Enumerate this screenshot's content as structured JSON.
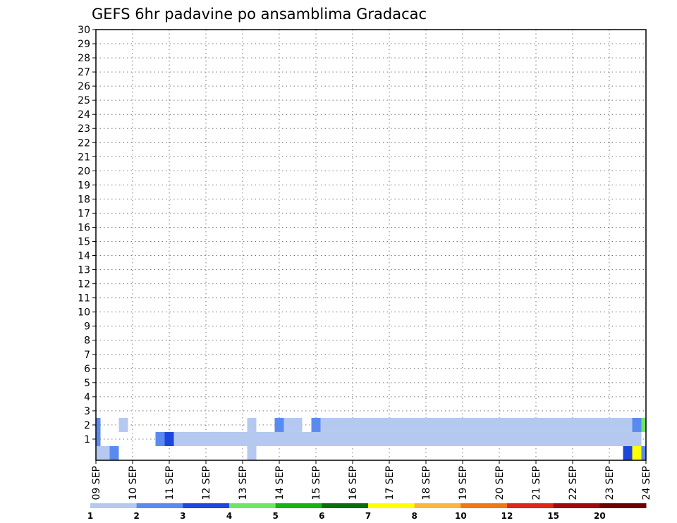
{
  "chart_data": {
    "type": "heatmap",
    "title": "GEFS 6hr padavine po ansamblima Gradacac",
    "xlabel": "",
    "ylabel": "",
    "x_tick_labels": [
      "09 SEP",
      "10 SEP",
      "11 SEP",
      "12 SEP",
      "13 SEP",
      "14 SEP",
      "15 SEP",
      "16 SEP",
      "17 SEP",
      "18 SEP",
      "19 SEP",
      "20 SEP",
      "21 SEP",
      "22 SEP",
      "23 SEP",
      "24 SEP"
    ],
    "x_range": [
      "09 SEP 00Z",
      "24 SEP 00Z"
    ],
    "time_step_hours": 6,
    "y_tick_labels": [
      "1",
      "2",
      "3",
      "4",
      "5",
      "6",
      "7",
      "8",
      "9",
      "10",
      "11",
      "12",
      "13",
      "14",
      "15",
      "16",
      "17",
      "18",
      "19",
      "20",
      "21",
      "22",
      "23",
      "24",
      "25",
      "26",
      "27",
      "28",
      "29",
      "30"
    ],
    "y_range": [
      0,
      30
    ],
    "grid": "dotted",
    "colorbar": {
      "position": "bottom",
      "levels": [
        1,
        2,
        3,
        4,
        5,
        6,
        7,
        8,
        10,
        12,
        15,
        20
      ],
      "labels": [
        "1",
        "2",
        "3",
        "4",
        "5",
        "6",
        "7",
        "8",
        "10",
        "12",
        "15",
        "20"
      ],
      "colors": [
        "#b4c8f0",
        "#5a8af0",
        "#1e46dc",
        "#6ee664",
        "#14b414",
        "#0a6e0a",
        "#ffff00",
        "#ffb43c",
        "#f07814",
        "#dc2814",
        "#a00a0a",
        "#6e0000"
      ]
    },
    "cell_encoding": "each row is one ensemble member (0-30); each cell = [6-hour step index from 09 SEP 00Z, color class index into colorbar.colors]",
    "rows": [
      {
        "member": 0,
        "cells": [
          [
            0,
            0
          ],
          [
            1,
            0
          ],
          [
            2,
            1
          ],
          [
            17,
            0
          ],
          [
            58,
            2
          ],
          [
            59,
            6
          ],
          [
            60,
            1
          ]
        ]
      },
      {
        "member": 1,
        "cells": [
          [
            0,
            1
          ],
          [
            7,
            1
          ],
          [
            8,
            2
          ],
          [
            9,
            0
          ],
          [
            10,
            0
          ],
          [
            11,
            0
          ],
          [
            12,
            0
          ],
          [
            13,
            0
          ],
          [
            14,
            0
          ],
          [
            15,
            0
          ],
          [
            16,
            0
          ],
          [
            17,
            0
          ],
          [
            18,
            0
          ],
          [
            19,
            0
          ],
          [
            20,
            0
          ],
          [
            21,
            0
          ],
          [
            22,
            0
          ],
          [
            23,
            0
          ],
          [
            24,
            0
          ],
          [
            25,
            0
          ],
          [
            26,
            0
          ],
          [
            27,
            0
          ],
          [
            28,
            0
          ],
          [
            29,
            0
          ],
          [
            30,
            0
          ],
          [
            31,
            0
          ],
          [
            32,
            0
          ],
          [
            33,
            0
          ],
          [
            34,
            0
          ],
          [
            35,
            0
          ],
          [
            36,
            0
          ],
          [
            37,
            0
          ],
          [
            38,
            0
          ],
          [
            39,
            0
          ],
          [
            40,
            0
          ],
          [
            41,
            0
          ],
          [
            42,
            0
          ],
          [
            43,
            0
          ],
          [
            44,
            0
          ],
          [
            45,
            0
          ],
          [
            46,
            0
          ],
          [
            47,
            0
          ],
          [
            48,
            0
          ],
          [
            49,
            0
          ],
          [
            50,
            0
          ],
          [
            51,
            0
          ],
          [
            52,
            0
          ],
          [
            53,
            0
          ],
          [
            54,
            0
          ],
          [
            55,
            0
          ],
          [
            56,
            0
          ],
          [
            57,
            0
          ],
          [
            58,
            0
          ],
          [
            59,
            0
          ]
        ]
      },
      {
        "member": 2,
        "cells": [
          [
            0,
            1
          ],
          [
            3,
            0
          ],
          [
            17,
            0
          ],
          [
            20,
            1
          ],
          [
            21,
            0
          ],
          [
            22,
            0
          ],
          [
            24,
            1
          ],
          [
            25,
            0
          ],
          [
            26,
            0
          ],
          [
            27,
            0
          ],
          [
            28,
            0
          ],
          [
            29,
            0
          ],
          [
            30,
            0
          ],
          [
            31,
            0
          ],
          [
            32,
            0
          ],
          [
            33,
            0
          ],
          [
            34,
            0
          ],
          [
            35,
            0
          ],
          [
            36,
            0
          ],
          [
            37,
            0
          ],
          [
            38,
            0
          ],
          [
            39,
            0
          ],
          [
            40,
            0
          ],
          [
            41,
            0
          ],
          [
            42,
            0
          ],
          [
            43,
            0
          ],
          [
            44,
            0
          ],
          [
            45,
            0
          ],
          [
            46,
            0
          ],
          [
            47,
            0
          ],
          [
            48,
            0
          ],
          [
            49,
            0
          ],
          [
            50,
            0
          ],
          [
            51,
            0
          ],
          [
            52,
            0
          ],
          [
            53,
            0
          ],
          [
            54,
            0
          ],
          [
            55,
            0
          ],
          [
            56,
            0
          ],
          [
            57,
            0
          ],
          [
            58,
            0
          ],
          [
            59,
            1
          ],
          [
            60,
            3
          ]
        ]
      }
    ]
  }
}
